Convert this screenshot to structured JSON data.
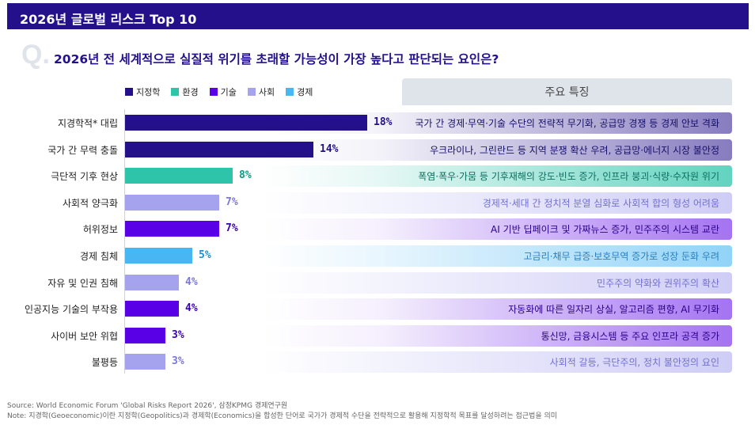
{
  "header": {
    "title": "2026년 글로벌 리스크 Top 10"
  },
  "question": {
    "mark": "Q.",
    "text": "2026년 전 세계적으로 실질적 위기를 초래할 가능성이 가장 높다고 판단되는 요인은?"
  },
  "legend": [
    {
      "label": "지정학",
      "color": "#24108a"
    },
    {
      "label": "환경",
      "color": "#2ec4a9"
    },
    {
      "label": "기술",
      "color": "#5a00e6"
    },
    {
      "label": "사회",
      "color": "#a6a3ee"
    },
    {
      "label": "경제",
      "color": "#48b6f2"
    }
  ],
  "features_header": "주요 특징",
  "chart_data": {
    "type": "bar",
    "orientation": "horizontal",
    "categories": [
      "지경학적* 대립",
      "국가 간 무력 충돌",
      "극단적 기후 현상",
      "사회적 양극화",
      "허위정보",
      "경제 침체",
      "자유 및 인권 침해",
      "인공지능 기술의 부작용",
      "사이버 보안 위협",
      "불평등"
    ],
    "values": [
      18,
      14,
      8,
      7,
      7,
      5,
      4,
      4,
      3,
      3
    ],
    "value_labels": [
      "18%",
      "14%",
      "8%",
      "7%",
      "7%",
      "5%",
      "4%",
      "4%",
      "3%",
      "3%"
    ],
    "groups": [
      "지정학",
      "지정학",
      "환경",
      "사회",
      "기술",
      "경제",
      "사회",
      "기술",
      "기술",
      "사회"
    ],
    "features": [
      "국가 간 경제·무역·기술 수단의 전략적 무기화, 공급망 경쟁 등 경제 안보 격화",
      "우크라이나, 그린란드 등 지역 분쟁 확산 우려, 공급망·에너지 시장 불안정",
      "폭염·폭우·가뭄 등 기후재해의 강도·빈도 증가, 인프라 붕괴·식량·수자원 위기",
      "경제적·세대 간 정치적 분열 심화로 사회적 합의 형성 어려움",
      "AI 기반 딥페이크 및 가짜뉴스 증가, 민주주의 시스템 교란",
      "고금리·채무 급증·보호무역 증가로 성장 둔화 우려",
      "민주주의 약화와 권위주의 확산",
      "자동화에 따른 일자리 상실, 알고리즘 편향, AI 무기화",
      "통신망, 금융시스템 등 주요 인프라 공격 증가",
      "사회적 갈등, 극단주의, 정치 불안정의 요인"
    ]
  },
  "footnotes": {
    "source": "Source: World Economic Forum 'Global Risks Report 2026', 삼정KPMG 경제연구원",
    "note": "Note: 지경학(Geoeconomic)이란 지정학(Geopolitics)과 경제학(Economics)을 합성한 단어로 국가가 경제적 수단을 전략적으로 활용해 지정학적 목표를 달성하려는 접근법을 의미"
  }
}
